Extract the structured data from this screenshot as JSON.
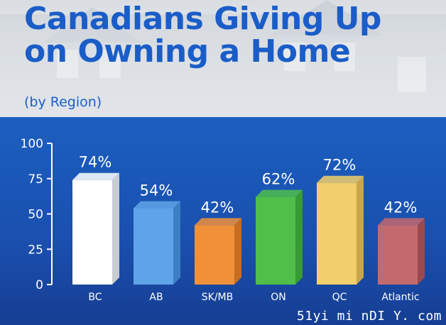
{
  "header": {
    "title_line1": "Canadians Giving Up",
    "title_line2": "on Owning a Home",
    "subtitle": "(by Region)"
  },
  "watermark": "51yi mi nDI Y. com",
  "chart_data": {
    "type": "bar",
    "title": "Canadians Giving Up on Owning a Home",
    "subtitle": "(by Region)",
    "categories": [
      "BC",
      "AB",
      "SK/MB",
      "ON",
      "QC",
      "Atlantic"
    ],
    "values": [
      74,
      54,
      42,
      62,
      72,
      42
    ],
    "value_labels": [
      "74%",
      "54%",
      "42%",
      "62%",
      "72%",
      "42%"
    ],
    "bar_colors": [
      "#ffffff",
      "#5fa4e8",
      "#f0913a",
      "#4fbf4a",
      "#f2cf6a",
      "#c46a6e"
    ],
    "bar_side_colors": [
      "#c9ccd0",
      "#3d7fc4",
      "#c76d22",
      "#379a33",
      "#c9a64a",
      "#9a4a4f"
    ],
    "yticks": [
      0,
      25,
      50,
      75,
      100
    ],
    "ylim": [
      0,
      100
    ],
    "xlabel": "",
    "ylabel": "",
    "grid": false,
    "legend": "none"
  }
}
